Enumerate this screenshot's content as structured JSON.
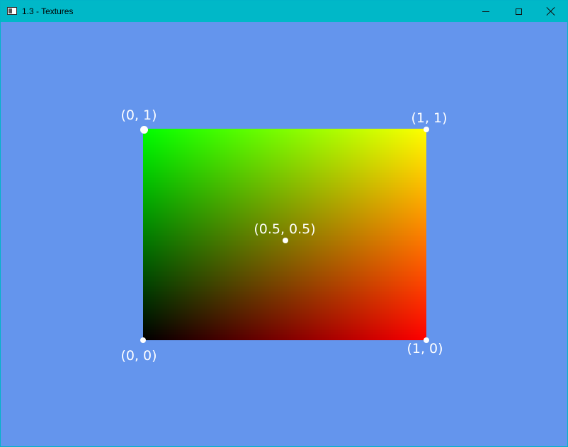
{
  "window": {
    "title": "1.3 - Textures",
    "background_color": "#6495ed",
    "titlebar_color": "#00b8c8",
    "controls": {
      "minimize": "minimize-icon",
      "maximize": "maximize-icon",
      "close": "close-icon"
    }
  },
  "scene": {
    "quad_colors": {
      "bottom_left": "#000000",
      "top_left": "#00ff00",
      "top_right": "#ffff00",
      "bottom_right": "#ff0000"
    },
    "labels": {
      "top_left": "(0, 1)",
      "top_right": "(1, 1)",
      "center": "(0.5, 0.5)",
      "bottom_left": "(0, 0)",
      "bottom_right": "(1, 0)"
    }
  }
}
